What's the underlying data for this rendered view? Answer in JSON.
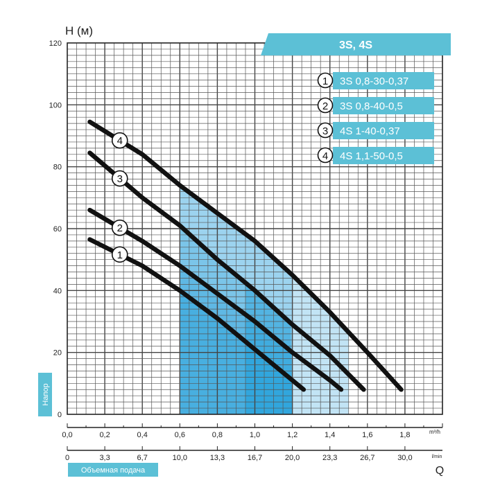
{
  "chart_data": {
    "type": "line",
    "title": "3S, 4S",
    "ylabel": "H (м)",
    "ylabel_vertical": "Напор",
    "xlabel": "Объемная подача",
    "xlabel_letter": "Q",
    "x_unit_m3h": "m³/h",
    "x_unit_lmin": "l/min",
    "xlim": [
      0,
      2.0
    ],
    "ylim": [
      0,
      120
    ],
    "grid": true,
    "x_ticks": [
      "0,0",
      "0,2",
      "0,4",
      "0,6",
      "0,8",
      "1,0",
      "1,2",
      "1,4",
      "1,6",
      "1,8"
    ],
    "x_tick_values": [
      0,
      0.2,
      0.4,
      0.6,
      0.8,
      1.0,
      1.2,
      1.4,
      1.6,
      1.8
    ],
    "y_ticks": [
      "0",
      "20",
      "40",
      "60",
      "80",
      "100",
      "120"
    ],
    "y_tick_values": [
      0,
      20,
      40,
      60,
      80,
      100,
      120
    ],
    "lmin_ticks": [
      "0",
      "3,3",
      "6,7",
      "10,0",
      "13,3",
      "16,7",
      "20,0",
      "23,3",
      "26,7",
      "30,0"
    ],
    "lmin_tick_values": [
      0,
      0.2,
      0.4,
      0.6,
      0.8,
      1.0,
      1.2,
      1.4,
      1.6,
      1.8
    ],
    "legend": [
      {
        "number": "1",
        "label": "3S 0,8-30-0,37"
      },
      {
        "number": "2",
        "label": "3S 0,8-40-0,5"
      },
      {
        "number": "3",
        "label": "4S 1-40-0,37"
      },
      {
        "number": "4",
        "label": "4S 1,1-50-0,5"
      }
    ],
    "series": [
      {
        "name": "3S 0,8-30-0,37",
        "marker": "1",
        "marker_x": 0.28,
        "x": [
          0.12,
          0.4,
          0.6,
          0.8,
          1.0,
          1.2,
          1.26
        ],
        "y": [
          56.5,
          48,
          40,
          31,
          21,
          11,
          8
        ]
      },
      {
        "name": "3S 0,8-40-0,5",
        "marker": "2",
        "marker_x": 0.28,
        "x": [
          0.12,
          0.4,
          0.6,
          0.8,
          1.0,
          1.2,
          1.4,
          1.46
        ],
        "y": [
          66,
          56,
          48,
          39,
          30,
          20,
          11,
          8
        ]
      },
      {
        "name": "4S 1-40-0,37",
        "marker": "3",
        "marker_x": 0.28,
        "x": [
          0.12,
          0.4,
          0.6,
          0.8,
          1.0,
          1.2,
          1.4,
          1.58
        ],
        "y": [
          84.5,
          70,
          61,
          50,
          40,
          29,
          19,
          8
        ]
      },
      {
        "name": "4S 1,1-50-0,5",
        "marker": "4",
        "marker_x": 0.28,
        "x": [
          0.12,
          0.4,
          0.6,
          0.8,
          1.0,
          1.2,
          1.4,
          1.6,
          1.78
        ],
        "y": [
          94.5,
          84,
          74,
          65,
          56,
          45,
          33,
          20,
          8
        ]
      }
    ],
    "working_range": {
      "x_from": 0.6,
      "x_to": 1.5
    },
    "colors": {
      "accent": "#5cc0d6",
      "curve": "#111111",
      "grid_major": "#444444",
      "grid_minor": "#555555",
      "zone_dark": "#0a95d8",
      "zone_light": "#c2e4f5"
    }
  }
}
